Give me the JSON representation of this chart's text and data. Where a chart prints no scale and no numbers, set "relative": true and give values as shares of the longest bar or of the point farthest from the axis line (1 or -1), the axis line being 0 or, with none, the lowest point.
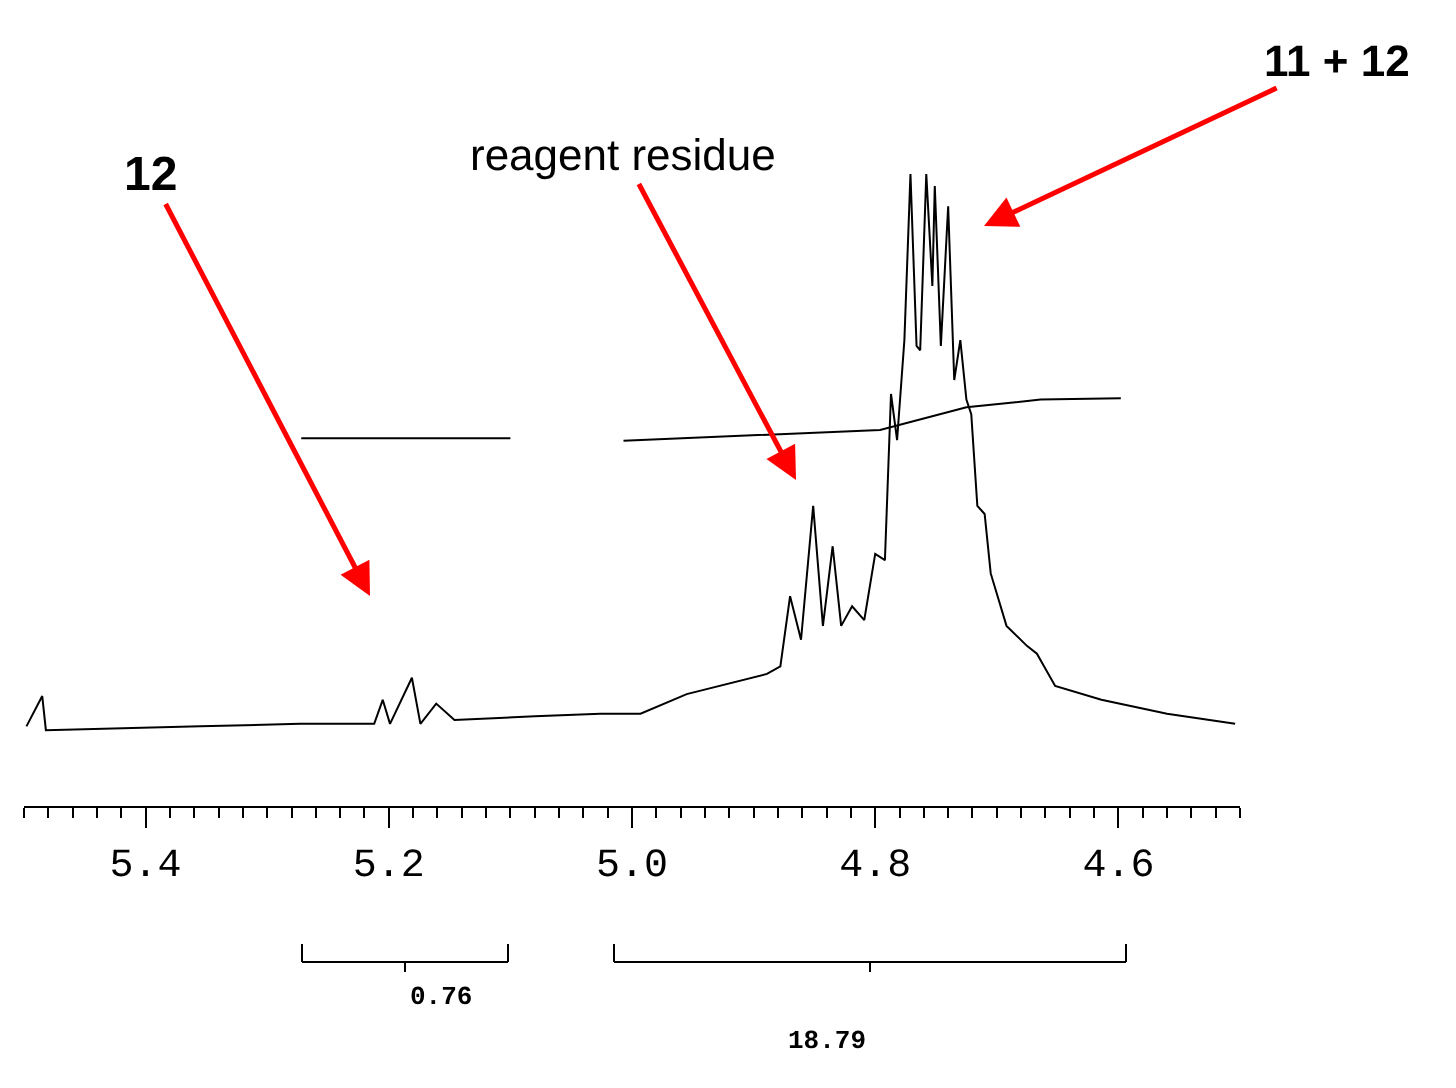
{
  "chart_data": {
    "type": "line",
    "relative": true,
    "xlim": [
      5.5,
      4.5
    ],
    "xticks": [
      5.4,
      5.2,
      {
        "value": 5.0,
        "label": "5.0"
      },
      4.8,
      4.6
    ],
    "marker": "none",
    "line_style": "solid",
    "series": [
      {
        "color": "#000000",
        "x": [
          5.498,
          5.485,
          5.482,
          5.355,
          5.273,
          5.212,
          5.205,
          5.199,
          5.181,
          5.174,
          5.161,
          5.146,
          5.08,
          5.026,
          4.993,
          4.955,
          4.889,
          4.878,
          4.87,
          4.861,
          4.851,
          4.843,
          4.835,
          4.828,
          4.819,
          4.809,
          4.8,
          4.792,
          4.787,
          4.782,
          4.776,
          4.771,
          4.766,
          4.763,
          4.758,
          4.753,
          4.751,
          4.746,
          4.74,
          4.735,
          4.73,
          4.725,
          4.721,
          4.716,
          4.71,
          4.705,
          4.692,
          4.675,
          4.667,
          4.652,
          4.614,
          4.56,
          4.504
        ],
        "values": [
          0.126,
          0.174,
          0.12,
          0.126,
          0.13,
          0.13,
          0.168,
          0.13,
          0.203,
          0.13,
          0.162,
          0.136,
          0.142,
          0.146,
          0.146,
          0.177,
          0.209,
          0.221,
          0.332,
          0.263,
          0.475,
          0.285,
          0.411,
          0.285,
          0.316,
          0.294,
          0.399,
          0.389,
          0.652,
          0.579,
          0.737,
          1,
          0.728,
          0.721,
          1,
          0.823,
          0.981,
          0.728,
          0.949,
          0.674,
          0.737,
          0.643,
          0.62,
          0.475,
          0.462,
          0.368,
          0.285,
          0.253,
          0.241,
          0.19,
          0.168,
          0.146,
          0.13
        ]
      },
      {
        "color": "#000000",
        "x": [
          5.272,
          5.1,
          5.05,
          5.007,
          4.796,
          4.725,
          4.664,
          4.598
        ],
        "values": [
          0.582,
          0.582,
          null,
          0.578,
          0.595,
          0.631,
          0.643,
          0.645
        ]
      }
    ],
    "annotations": [
      "12",
      "reagent residue",
      "11 + 12",
      "0.76",
      "18.79"
    ]
  }
}
